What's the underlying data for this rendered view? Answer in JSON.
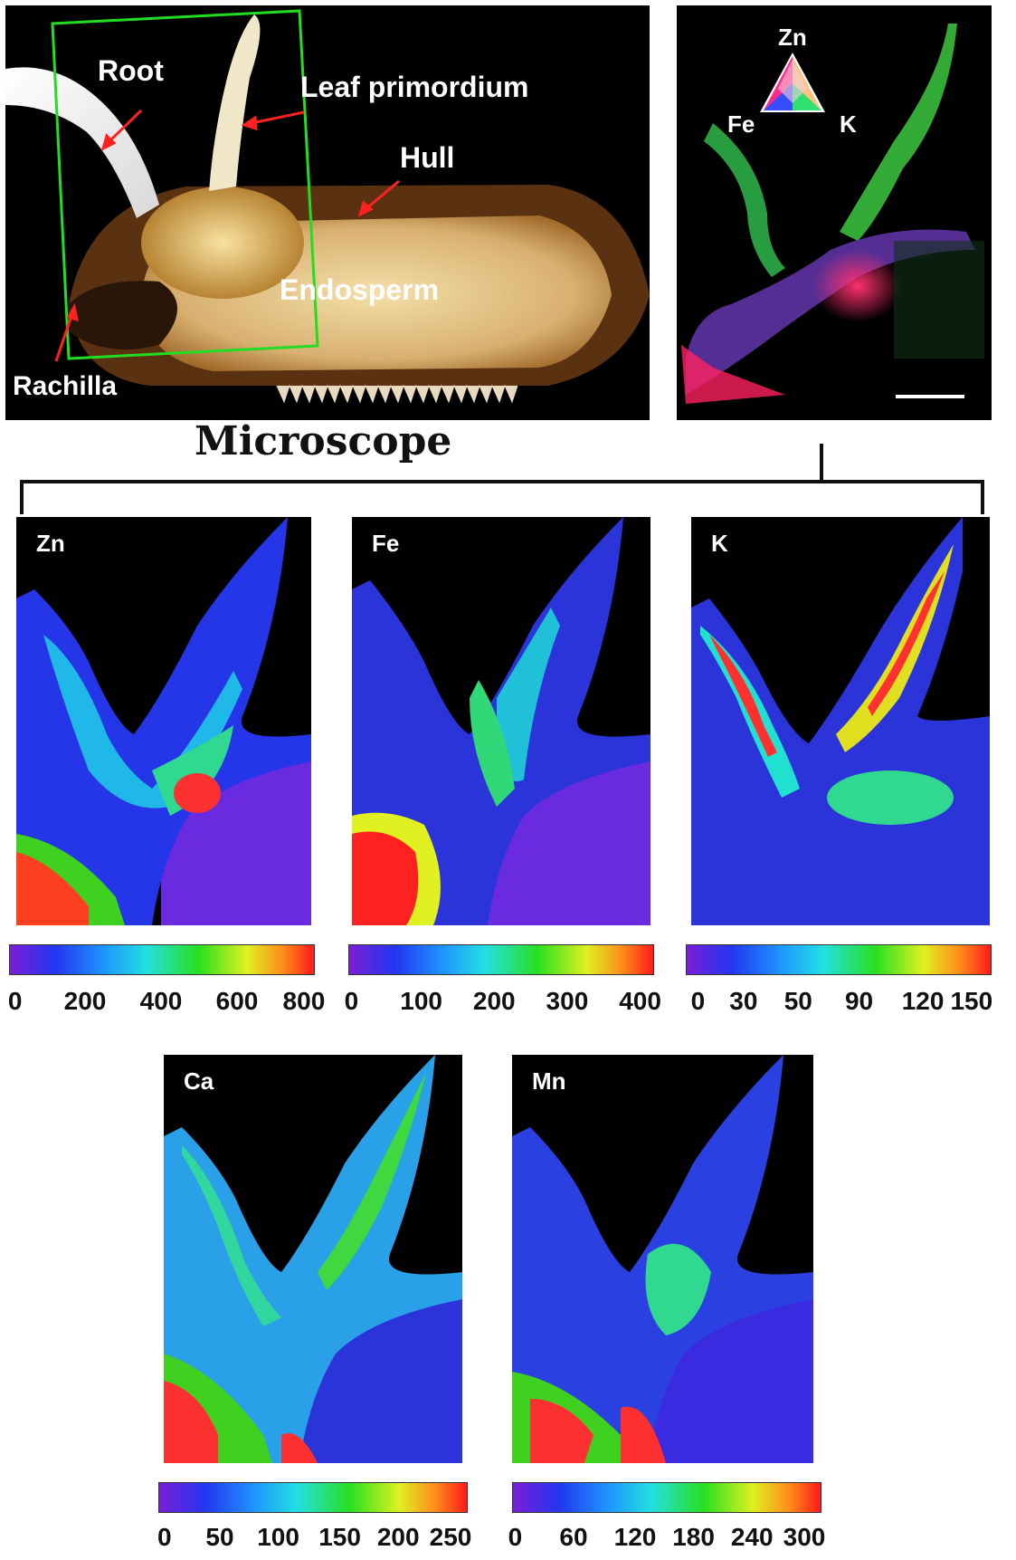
{
  "photo_labels": {
    "root": "Root",
    "leaf": "Leaf primordium",
    "hull": "Hull",
    "endosperm": "Endosperm",
    "rachilla": "Rachilla"
  },
  "triangle_labels": {
    "top": "Zn",
    "left": "Fe",
    "right": "K"
  },
  "heading": "Microscope",
  "maps": [
    {
      "element": "Zn",
      "ticks": [
        "0",
        "200",
        "400",
        "600",
        "800"
      ]
    },
    {
      "element": "Fe",
      "ticks": [
        "0",
        "100",
        "200",
        "300",
        "400"
      ]
    },
    {
      "element": "K",
      "ticks": [
        "0",
        "30",
        "50",
        "90",
        "120",
        "150"
      ]
    },
    {
      "element": "Ca",
      "ticks": [
        "0",
        "50",
        "100",
        "150",
        "200",
        "250"
      ]
    },
    {
      "element": "Mn",
      "ticks": [
        "0",
        "60",
        "120",
        "180",
        "240",
        "300"
      ]
    }
  ],
  "colors": {
    "roi_box": "#22dd22",
    "arrow": "#ff2020",
    "bracket": "#111111"
  }
}
